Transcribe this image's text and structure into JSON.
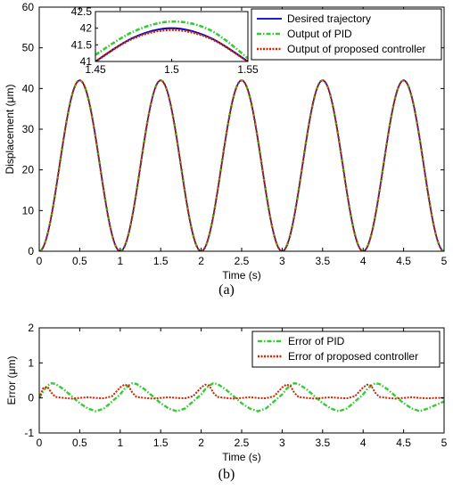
{
  "chart_data": [
    {
      "type": "line",
      "panel_label": "(a)",
      "xlabel": "Time (s)",
      "ylabel": "Displacement (μm)",
      "xlim": [
        0,
        5
      ],
      "ylim": [
        0,
        60
      ],
      "xticks": [
        0,
        0.5,
        1,
        1.5,
        2,
        2.5,
        3,
        3.5,
        4,
        4.5,
        5
      ],
      "yticks": [
        0,
        10,
        20,
        30,
        40,
        50,
        60
      ],
      "grid": false,
      "legend_placement": "top-right",
      "signal": {
        "shape": "raised-sine",
        "offset": 21,
        "amplitude": 21,
        "period_s": 1,
        "peak_times_s": [
          0.5,
          1.5,
          2.5,
          3.5,
          4.5
        ]
      },
      "series": [
        {
          "name": "Desired trajectory",
          "color": "#0000cc",
          "style": "solid",
          "x": [
            0,
            0.25,
            0.5,
            0.75,
            1,
            1.25,
            1.5,
            1.75,
            2,
            2.25,
            2.5,
            2.75,
            3,
            3.25,
            3.5,
            3.75,
            4,
            4.25,
            4.5,
            4.75,
            5
          ],
          "values": [
            0,
            21,
            42,
            21,
            0,
            21,
            42,
            21,
            0,
            21,
            42,
            21,
            0,
            21,
            42,
            21,
            0,
            21,
            42,
            21,
            0
          ]
        },
        {
          "name": "Output of PID",
          "color": "#33cc33",
          "style": "dash-dot",
          "x": [
            0,
            0.25,
            0.5,
            0.75,
            1,
            1.25,
            1.5,
            1.75,
            2,
            2.25,
            2.5,
            2.75,
            3,
            3.25,
            3.5,
            3.75,
            4,
            4.25,
            4.5,
            4.75,
            5
          ],
          "values": [
            0,
            21,
            42,
            21,
            0,
            21,
            42,
            21,
            0,
            21,
            42,
            21,
            0,
            21,
            42,
            21,
            0,
            21,
            42,
            21,
            0
          ]
        },
        {
          "name": "Output of proposed controller",
          "color": "#cc2200",
          "style": "dotted",
          "x": [
            0,
            0.25,
            0.5,
            0.75,
            1,
            1.25,
            1.5,
            1.75,
            2,
            2.25,
            2.5,
            2.75,
            3,
            3.25,
            3.5,
            3.75,
            4,
            4.25,
            4.5,
            4.75,
            5
          ],
          "values": [
            0,
            21,
            42,
            21,
            0,
            21,
            42,
            21,
            0,
            21,
            42,
            21,
            0,
            21,
            42,
            21,
            0,
            21,
            42,
            21,
            0
          ]
        }
      ],
      "inset": {
        "xlim": [
          1.45,
          1.55
        ],
        "ylim": [
          41,
          42.5
        ],
        "xticks": [
          1.45,
          1.5,
          1.55
        ],
        "yticks": [
          41,
          41.5,
          42,
          42.5
        ],
        "series": [
          {
            "name": "Desired trajectory",
            "x": [
              1.45,
              1.475,
              1.5,
              1.525,
              1.55
            ],
            "values": [
              41.0,
              41.72,
              42.0,
              41.72,
              41.0
            ]
          },
          {
            "name": "Output of PID",
            "x": [
              1.45,
              1.475,
              1.5,
              1.525,
              1.55
            ],
            "values": [
              41.2,
              41.9,
              42.2,
              41.95,
              41.1
            ]
          },
          {
            "name": "Output of proposed controller",
            "x": [
              1.45,
              1.475,
              1.5,
              1.525,
              1.55
            ],
            "values": [
              41.0,
              41.7,
              41.95,
              41.7,
              41.0
            ]
          }
        ]
      }
    },
    {
      "type": "line",
      "panel_label": "(b)",
      "xlabel": "Time (s)",
      "ylabel": "Error (μm)",
      "xlim": [
        0,
        5
      ],
      "ylim": [
        -1,
        2
      ],
      "xticks": [
        0,
        0.5,
        1,
        1.5,
        2,
        2.5,
        3,
        3.5,
        4,
        4.5,
        5
      ],
      "yticks": [
        -1,
        0,
        1,
        2
      ],
      "yticklabels": [
        "-1",
        "0",
        "1",
        "2"
      ],
      "grid": false,
      "legend_placement": "top-right",
      "series": [
        {
          "name": "Error of PID",
          "color": "#33cc33",
          "style": "dash-dot",
          "x": [
            0,
            0.05,
            0.1,
            0.15,
            0.2,
            0.3,
            0.4,
            0.5,
            0.6,
            0.7,
            0.8,
            0.9,
            1.0,
            1.05,
            1.1,
            1.15,
            1.2,
            1.3,
            1.4,
            1.5,
            1.6,
            1.7,
            1.8,
            1.9,
            2.0,
            2.05,
            2.1,
            2.15,
            2.2,
            2.3,
            2.4,
            2.5,
            2.6,
            2.7,
            2.8,
            2.9,
            3.0,
            3.05,
            3.1,
            3.15,
            3.2,
            3.3,
            3.4,
            3.5,
            3.6,
            3.7,
            3.8,
            3.9,
            4.0,
            4.05,
            4.1,
            4.15,
            4.2,
            4.3,
            4.4,
            4.5,
            4.6,
            4.7,
            4.8,
            4.9,
            5.0
          ],
          "values": [
            0.0,
            0.2,
            0.35,
            0.42,
            0.4,
            0.25,
            0.05,
            -0.15,
            -0.3,
            -0.38,
            -0.3,
            -0.1,
            0.1,
            0.25,
            0.35,
            0.42,
            0.4,
            0.25,
            0.05,
            -0.15,
            -0.3,
            -0.38,
            -0.3,
            -0.1,
            0.1,
            0.25,
            0.35,
            0.42,
            0.4,
            0.25,
            0.05,
            -0.15,
            -0.3,
            -0.38,
            -0.3,
            -0.1,
            0.1,
            0.25,
            0.35,
            0.42,
            0.4,
            0.25,
            0.05,
            -0.15,
            -0.3,
            -0.38,
            -0.3,
            -0.1,
            0.1,
            0.25,
            0.35,
            0.42,
            0.4,
            0.25,
            0.05,
            -0.15,
            -0.3,
            -0.38,
            -0.3,
            -0.2,
            -0.1
          ]
        },
        {
          "name": "Error of proposed controller",
          "color": "#cc2200",
          "style": "dotted",
          "x": [
            0,
            0.05,
            0.1,
            0.15,
            0.2,
            0.3,
            0.4,
            0.5,
            0.6,
            0.7,
            0.8,
            0.9,
            1.0,
            1.05,
            1.1,
            1.15,
            1.2,
            1.3,
            1.4,
            1.5,
            1.6,
            1.7,
            1.8,
            1.9,
            2.0,
            2.05,
            2.1,
            2.15,
            2.2,
            2.3,
            2.4,
            2.5,
            2.6,
            2.7,
            2.8,
            2.9,
            3.0,
            3.05,
            3.1,
            3.15,
            3.2,
            3.3,
            3.4,
            3.5,
            3.6,
            3.7,
            3.8,
            3.9,
            4.0,
            4.05,
            4.1,
            4.15,
            4.2,
            4.3,
            4.4,
            4.5,
            4.6,
            4.7,
            4.8,
            4.9,
            5.0
          ],
          "values": [
            0.0,
            0.28,
            0.32,
            0.15,
            0.03,
            0.0,
            -0.02,
            0.0,
            0.02,
            0.0,
            -0.01,
            0.05,
            0.3,
            0.38,
            0.35,
            0.15,
            0.03,
            0.0,
            -0.02,
            0.0,
            0.02,
            0.0,
            -0.01,
            0.05,
            0.3,
            0.38,
            0.35,
            0.15,
            0.03,
            0.0,
            -0.02,
            0.0,
            0.02,
            0.0,
            -0.01,
            0.05,
            0.3,
            0.38,
            0.35,
            0.15,
            0.03,
            0.0,
            -0.02,
            0.0,
            0.02,
            0.0,
            -0.01,
            0.05,
            0.3,
            0.38,
            0.35,
            0.15,
            0.03,
            0.0,
            -0.02,
            0.0,
            0.02,
            0.0,
            -0.01,
            0.0,
            0.0
          ]
        }
      ]
    }
  ]
}
